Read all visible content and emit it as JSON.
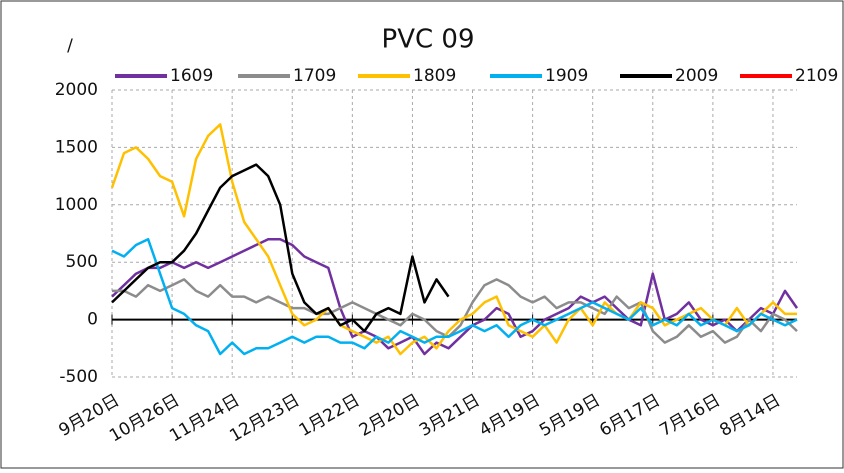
{
  "chart_data": {
    "type": "line",
    "title": "PVC 09",
    "y_label": "/",
    "categories": [
      "9月20日",
      null,
      null,
      null,
      null,
      "10月26日",
      null,
      null,
      null,
      null,
      "11月24日",
      null,
      null,
      null,
      null,
      "12月23日",
      null,
      null,
      null,
      null,
      "1月22日",
      null,
      null,
      null,
      null,
      "2月20日",
      null,
      null,
      null,
      null,
      "3月21日",
      null,
      null,
      null,
      null,
      "4月19日",
      null,
      null,
      null,
      null,
      "5月19日",
      null,
      null,
      null,
      null,
      "6月17日",
      null,
      null,
      null,
      null,
      "7月16日",
      null,
      null,
      null,
      null,
      "8月14日",
      null,
      null
    ],
    "series": [
      {
        "name": "1609",
        "color": "#7030a0",
        "values": [
          200,
          300,
          400,
          450,
          450,
          500,
          450,
          500,
          450,
          500,
          550,
          600,
          650,
          700,
          700,
          650,
          550,
          500,
          450,
          100,
          -150,
          -100,
          -150,
          -250,
          -200,
          -150,
          -300,
          -200,
          -250,
          -150,
          -50,
          0,
          100,
          50,
          -150,
          -100,
          0,
          50,
          100,
          200,
          150,
          200,
          100,
          0,
          -50,
          400,
          0,
          50,
          150,
          0,
          -50,
          0,
          -100,
          0,
          100,
          50,
          250,
          100
        ]
      },
      {
        "name": "1709",
        "color": "#8c8c8c",
        "values": [
          250,
          250,
          200,
          300,
          250,
          300,
          350,
          250,
          200,
          300,
          200,
          200,
          150,
          200,
          150,
          100,
          100,
          50,
          50,
          100,
          150,
          100,
          50,
          0,
          -50,
          50,
          0,
          -100,
          -150,
          -50,
          150,
          300,
          350,
          300,
          200,
          150,
          200,
          100,
          150,
          150,
          100,
          50,
          200,
          100,
          150,
          -100,
          -200,
          -150,
          -50,
          -150,
          -100,
          -200,
          -150,
          0,
          -100,
          50,
          0,
          -100
        ]
      },
      {
        "name": "1809",
        "color": "#ffc000",
        "values": [
          1150,
          1450,
          1500,
          1400,
          1250,
          1200,
          900,
          1400,
          1600,
          1700,
          1200,
          850,
          700,
          550,
          300,
          50,
          -50,
          0,
          100,
          -50,
          -100,
          -150,
          -200,
          -150,
          -300,
          -200,
          -150,
          -250,
          -100,
          0,
          50,
          150,
          200,
          -50,
          -100,
          -150,
          -50,
          -200,
          0,
          100,
          -50,
          150,
          50,
          0,
          150,
          100,
          -50,
          0,
          50,
          100,
          0,
          -50,
          100,
          -50,
          50,
          150,
          50,
          50
        ]
      },
      {
        "name": "1909",
        "color": "#00b0f0",
        "values": [
          600,
          550,
          650,
          700,
          400,
          100,
          50,
          -50,
          -100,
          -300,
          -200,
          -300,
          -250,
          -250,
          -200,
          -150,
          -200,
          -150,
          -150,
          -200,
          -200,
          -250,
          -150,
          -200,
          -100,
          -150,
          -200,
          -150,
          -150,
          -100,
          -50,
          -100,
          -50,
          -150,
          -50,
          0,
          -50,
          0,
          50,
          100,
          150,
          100,
          50,
          0,
          100,
          -50,
          0,
          -50,
          50,
          -50,
          0,
          -50,
          -100,
          -50,
          50,
          0,
          -50,
          0
        ]
      },
      {
        "name": "2009",
        "color": "#000000",
        "values": [
          150,
          250,
          350,
          450,
          500,
          500,
          600,
          750,
          950,
          1150,
          1250,
          1300,
          1350,
          1250,
          1000,
          400,
          150,
          50,
          100,
          -50,
          0,
          -100,
          50,
          100,
          50,
          550,
          150,
          350,
          200,
          null,
          null,
          null,
          null,
          null,
          null,
          null,
          null,
          null,
          null,
          null,
          null,
          null,
          null,
          null,
          null,
          null,
          null,
          null,
          null,
          null,
          null,
          null,
          null,
          null,
          null,
          null,
          null,
          null
        ]
      },
      {
        "name": "2109",
        "color": "#ff0000",
        "values": [
          null,
          null,
          null,
          null,
          null,
          null,
          null,
          null,
          null,
          null,
          null,
          null,
          null,
          null,
          null,
          null,
          null,
          null,
          null,
          null,
          null,
          null,
          null,
          null,
          null,
          null,
          null,
          null,
          null,
          null,
          null,
          null,
          null,
          null,
          null,
          null,
          null,
          null,
          null,
          null,
          null,
          null,
          null,
          null,
          null,
          null,
          null,
          null,
          null,
          null,
          null,
          null,
          null,
          null,
          null,
          null,
          null,
          null
        ]
      }
    ],
    "ylim": [
      -500,
      2000
    ],
    "yticks": [
      -500,
      0,
      500,
      1000,
      1500,
      2000
    ],
    "grid": true
  }
}
